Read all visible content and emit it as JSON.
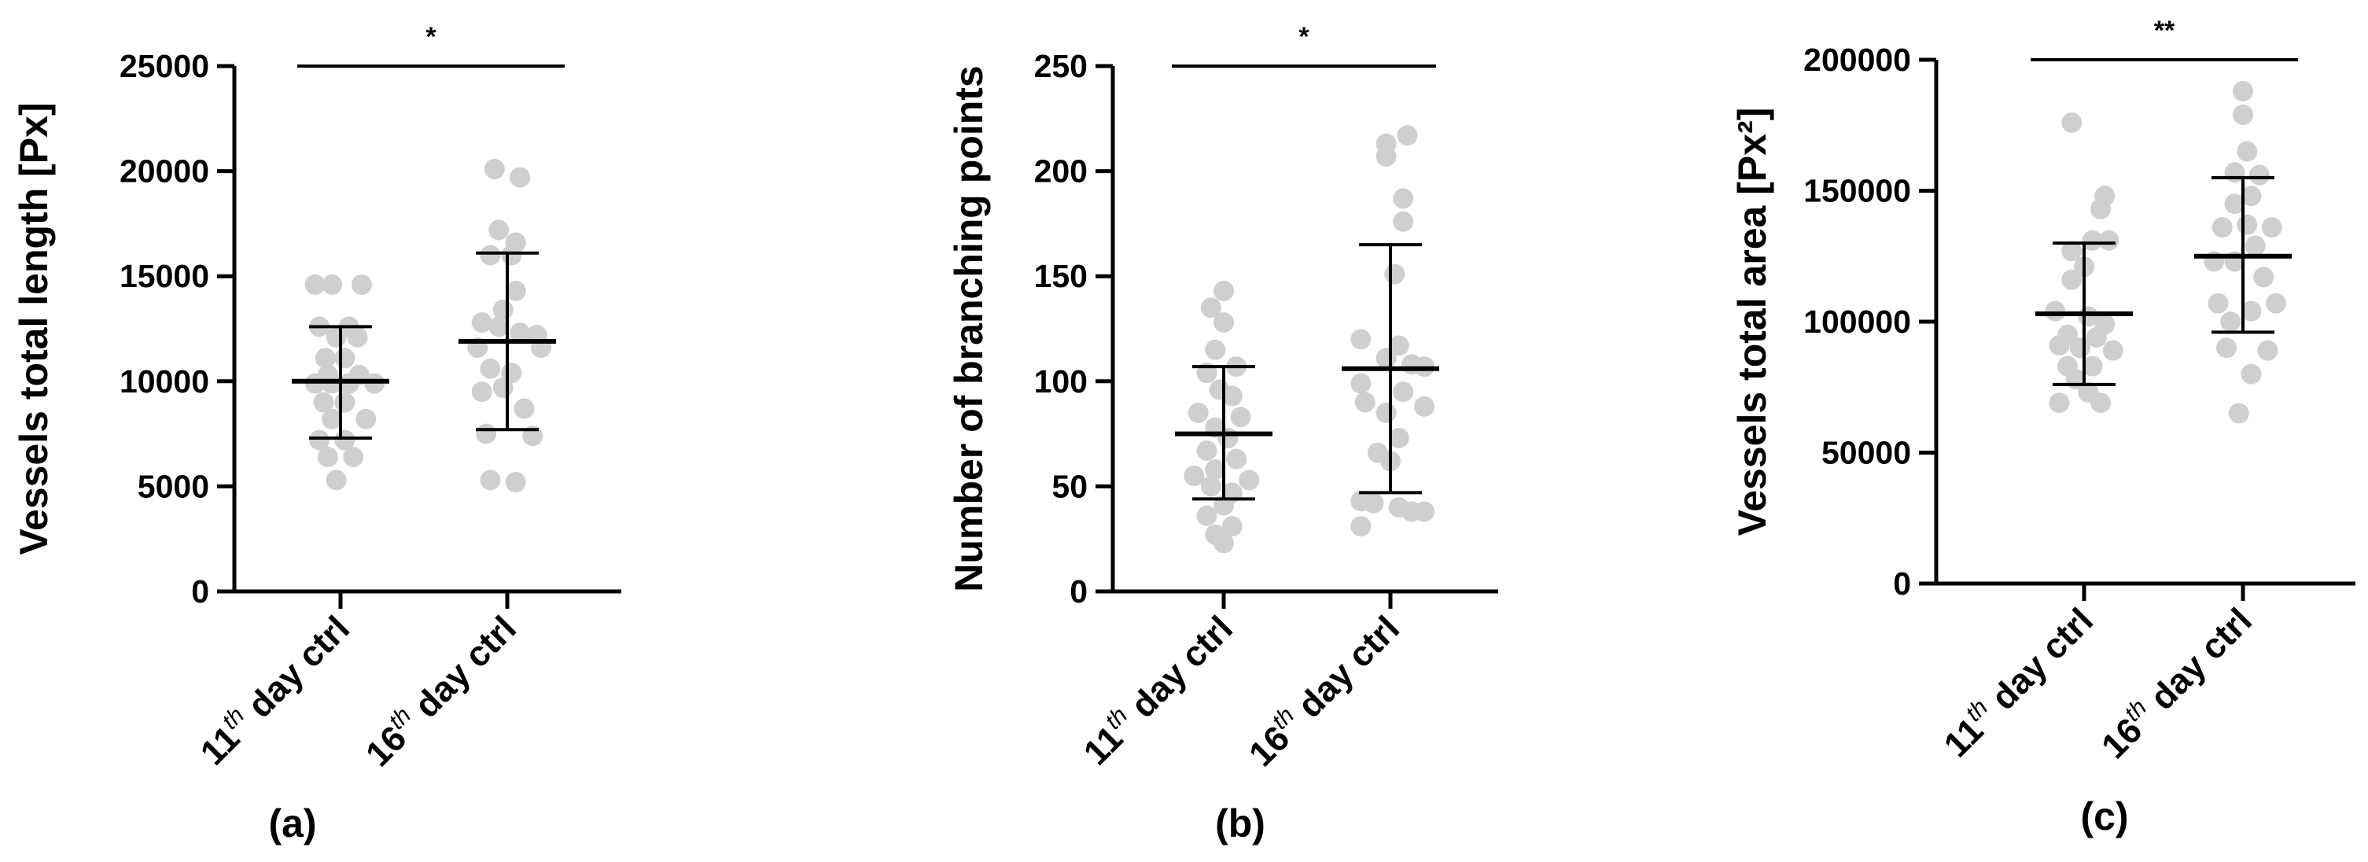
{
  "chart_data": [
    {
      "type": "scatter",
      "panel_label": "(a)",
      "ylabel": "Vessels total length [Px]",
      "ylim": [
        0,
        25000
      ],
      "yticks": [
        0,
        5000,
        10000,
        15000,
        20000,
        25000
      ],
      "categories": [
        {
          "base": "11",
          "sup": "th",
          "rest": " day ctrl"
        },
        {
          "base": "16",
          "sup": "th",
          "rest": " day ctrl"
        }
      ],
      "significance": "*",
      "point_color": "#cfcfcf",
      "series": [
        {
          "mean": 10000,
          "sd_low": 7300,
          "sd_high": 12600,
          "points": [
            {
              "dx": -0.3,
              "y": 14600
            },
            {
              "dx": -0.1,
              "y": 14600
            },
            {
              "dx": 0.25,
              "y": 14600
            },
            {
              "dx": -0.25,
              "y": 12600
            },
            {
              "dx": 0.1,
              "y": 12600
            },
            {
              "dx": -0.05,
              "y": 12100
            },
            {
              "dx": 0.2,
              "y": 12100
            },
            {
              "dx": -0.18,
              "y": 11100
            },
            {
              "dx": 0.05,
              "y": 11100
            },
            {
              "dx": -0.15,
              "y": 10300
            },
            {
              "dx": 0.22,
              "y": 10300
            },
            {
              "dx": -0.3,
              "y": 9900
            },
            {
              "dx": -0.1,
              "y": 9900
            },
            {
              "dx": 0.1,
              "y": 9900
            },
            {
              "dx": 0.4,
              "y": 9900
            },
            {
              "dx": -0.2,
              "y": 9000
            },
            {
              "dx": 0.05,
              "y": 9000
            },
            {
              "dx": -0.1,
              "y": 8200
            },
            {
              "dx": 0.3,
              "y": 8200
            },
            {
              "dx": -0.25,
              "y": 7200
            },
            {
              "dx": 0.05,
              "y": 7200
            },
            {
              "dx": -0.15,
              "y": 6400
            },
            {
              "dx": 0.15,
              "y": 6400
            },
            {
              "dx": -0.05,
              "y": 5300
            }
          ]
        },
        {
          "mean": 11900,
          "sd_low": 7700,
          "sd_high": 16100,
          "points": [
            {
              "dx": -0.15,
              "y": 20100
            },
            {
              "dx": 0.15,
              "y": 19700
            },
            {
              "dx": -0.1,
              "y": 17200
            },
            {
              "dx": 0.1,
              "y": 16600
            },
            {
              "dx": -0.2,
              "y": 16000
            },
            {
              "dx": 0.05,
              "y": 16000
            },
            {
              "dx": 0.1,
              "y": 14300
            },
            {
              "dx": -0.05,
              "y": 13400
            },
            {
              "dx": -0.3,
              "y": 12800
            },
            {
              "dx": -0.1,
              "y": 12600
            },
            {
              "dx": 0.15,
              "y": 12300
            },
            {
              "dx": 0.35,
              "y": 12200
            },
            {
              "dx": -0.35,
              "y": 11600
            },
            {
              "dx": 0.4,
              "y": 11600
            },
            {
              "dx": -0.2,
              "y": 10600
            },
            {
              "dx": 0.05,
              "y": 10400
            },
            {
              "dx": -0.05,
              "y": 9700
            },
            {
              "dx": -0.3,
              "y": 9500
            },
            {
              "dx": 0.2,
              "y": 8700
            },
            {
              "dx": -0.25,
              "y": 7500
            },
            {
              "dx": 0.3,
              "y": 7400
            },
            {
              "dx": -0.2,
              "y": 5300
            },
            {
              "dx": 0.1,
              "y": 5200
            }
          ]
        }
      ]
    },
    {
      "type": "scatter",
      "panel_label": "(b)",
      "ylabel": "Number of branching points",
      "ylim": [
        0,
        250
      ],
      "yticks": [
        0,
        50,
        100,
        150,
        200,
        250
      ],
      "categories": [
        {
          "base": "11",
          "sup": "th",
          "rest": " day ctrl"
        },
        {
          "base": "16",
          "sup": "th",
          "rest": " day ctrl"
        }
      ],
      "significance": "*",
      "point_color": "#cfcfcf",
      "series": [
        {
          "mean": 75,
          "sd_low": 44,
          "sd_high": 107,
          "points": [
            {
              "dx": 0.0,
              "y": 143
            },
            {
              "dx": -0.15,
              "y": 135
            },
            {
              "dx": 0.0,
              "y": 128
            },
            {
              "dx": -0.1,
              "y": 115
            },
            {
              "dx": 0.15,
              "y": 107
            },
            {
              "dx": -0.2,
              "y": 104
            },
            {
              "dx": -0.05,
              "y": 96
            },
            {
              "dx": 0.1,
              "y": 93
            },
            {
              "dx": -0.3,
              "y": 85
            },
            {
              "dx": 0.2,
              "y": 83
            },
            {
              "dx": -0.1,
              "y": 78
            },
            {
              "dx": 0.05,
              "y": 73
            },
            {
              "dx": -0.2,
              "y": 67
            },
            {
              "dx": 0.15,
              "y": 63
            },
            {
              "dx": -0.1,
              "y": 58
            },
            {
              "dx": -0.35,
              "y": 55
            },
            {
              "dx": 0.3,
              "y": 53
            },
            {
              "dx": -0.15,
              "y": 50
            },
            {
              "dx": 0.1,
              "y": 47
            },
            {
              "dx": 0.0,
              "y": 41
            },
            {
              "dx": -0.2,
              "y": 36
            },
            {
              "dx": 0.1,
              "y": 31
            },
            {
              "dx": -0.1,
              "y": 27
            },
            {
              "dx": 0.0,
              "y": 23
            }
          ]
        },
        {
          "mean": 106,
          "sd_low": 47,
          "sd_high": 165,
          "points": [
            {
              "dx": 0.2,
              "y": 217
            },
            {
              "dx": -0.05,
              "y": 213
            },
            {
              "dx": -0.05,
              "y": 207
            },
            {
              "dx": 0.15,
              "y": 187
            },
            {
              "dx": 0.15,
              "y": 176
            },
            {
              "dx": 0.05,
              "y": 151
            },
            {
              "dx": -0.35,
              "y": 120
            },
            {
              "dx": 0.1,
              "y": 117
            },
            {
              "dx": -0.05,
              "y": 111
            },
            {
              "dx": 0.25,
              "y": 108
            },
            {
              "dx": 0.4,
              "y": 107
            },
            {
              "dx": -0.35,
              "y": 99
            },
            {
              "dx": 0.15,
              "y": 95
            },
            {
              "dx": -0.3,
              "y": 90
            },
            {
              "dx": 0.4,
              "y": 88
            },
            {
              "dx": -0.05,
              "y": 85
            },
            {
              "dx": 0.1,
              "y": 73
            },
            {
              "dx": -0.15,
              "y": 66
            },
            {
              "dx": 0.0,
              "y": 62
            },
            {
              "dx": -0.35,
              "y": 43
            },
            {
              "dx": -0.2,
              "y": 42
            },
            {
              "dx": 0.1,
              "y": 40
            },
            {
              "dx": 0.4,
              "y": 38
            },
            {
              "dx": 0.25,
              "y": 38
            },
            {
              "dx": -0.35,
              "y": 31
            }
          ]
        }
      ]
    },
    {
      "type": "scatter",
      "panel_label": "(c)",
      "ylabel": "Vessels total area [Px²]",
      "ylim": [
        0,
        200000
      ],
      "yticks": [
        0,
        50000,
        100000,
        150000,
        200000
      ],
      "categories": [
        {
          "base": "11",
          "sup": "th",
          "rest": " day ctrl"
        },
        {
          "base": "16",
          "sup": "th",
          "rest": " day ctrl"
        }
      ],
      "significance": "**",
      "point_color": "#cfcfcf",
      "series": [
        {
          "mean": 103000,
          "sd_low": 76000,
          "sd_high": 130000,
          "points": [
            {
              "dx": -0.15,
              "y": 176000
            },
            {
              "dx": 0.25,
              "y": 148000
            },
            {
              "dx": 0.2,
              "y": 143000
            },
            {
              "dx": 0.1,
              "y": 131000
            },
            {
              "dx": -0.15,
              "y": 127000
            },
            {
              "dx": 0.3,
              "y": 131000
            },
            {
              "dx": 0.0,
              "y": 121000
            },
            {
              "dx": -0.15,
              "y": 116000
            },
            {
              "dx": -0.35,
              "y": 104000
            },
            {
              "dx": 0.05,
              "y": 102000
            },
            {
              "dx": 0.25,
              "y": 99000
            },
            {
              "dx": -0.2,
              "y": 95000
            },
            {
              "dx": 0.15,
              "y": 94000
            },
            {
              "dx": -0.3,
              "y": 91000
            },
            {
              "dx": -0.05,
              "y": 90000
            },
            {
              "dx": 0.35,
              "y": 89000
            },
            {
              "dx": -0.2,
              "y": 83000
            },
            {
              "dx": 0.1,
              "y": 83000
            },
            {
              "dx": -0.1,
              "y": 78000
            },
            {
              "dx": 0.05,
              "y": 73000
            },
            {
              "dx": -0.3,
              "y": 69000
            },
            {
              "dx": 0.2,
              "y": 69000
            }
          ]
        },
        {
          "mean": 125000,
          "sd_low": 96000,
          "sd_high": 155000,
          "points": [
            {
              "dx": 0.0,
              "y": 188000
            },
            {
              "dx": 0.0,
              "y": 179000
            },
            {
              "dx": 0.05,
              "y": 165000
            },
            {
              "dx": -0.1,
              "y": 157000
            },
            {
              "dx": 0.2,
              "y": 156000
            },
            {
              "dx": 0.1,
              "y": 148000
            },
            {
              "dx": -0.1,
              "y": 145000
            },
            {
              "dx": 0.05,
              "y": 137000
            },
            {
              "dx": -0.25,
              "y": 136000
            },
            {
              "dx": 0.35,
              "y": 136000
            },
            {
              "dx": 0.15,
              "y": 129000
            },
            {
              "dx": -0.35,
              "y": 123000
            },
            {
              "dx": -0.1,
              "y": 123000
            },
            {
              "dx": 0.25,
              "y": 117000
            },
            {
              "dx": -0.3,
              "y": 107000
            },
            {
              "dx": 0.4,
              "y": 107000
            },
            {
              "dx": 0.1,
              "y": 104000
            },
            {
              "dx": -0.15,
              "y": 100000
            },
            {
              "dx": -0.2,
              "y": 90000
            },
            {
              "dx": 0.3,
              "y": 89000
            },
            {
              "dx": 0.1,
              "y": 80000
            },
            {
              "dx": -0.05,
              "y": 65000
            }
          ]
        }
      ]
    }
  ]
}
